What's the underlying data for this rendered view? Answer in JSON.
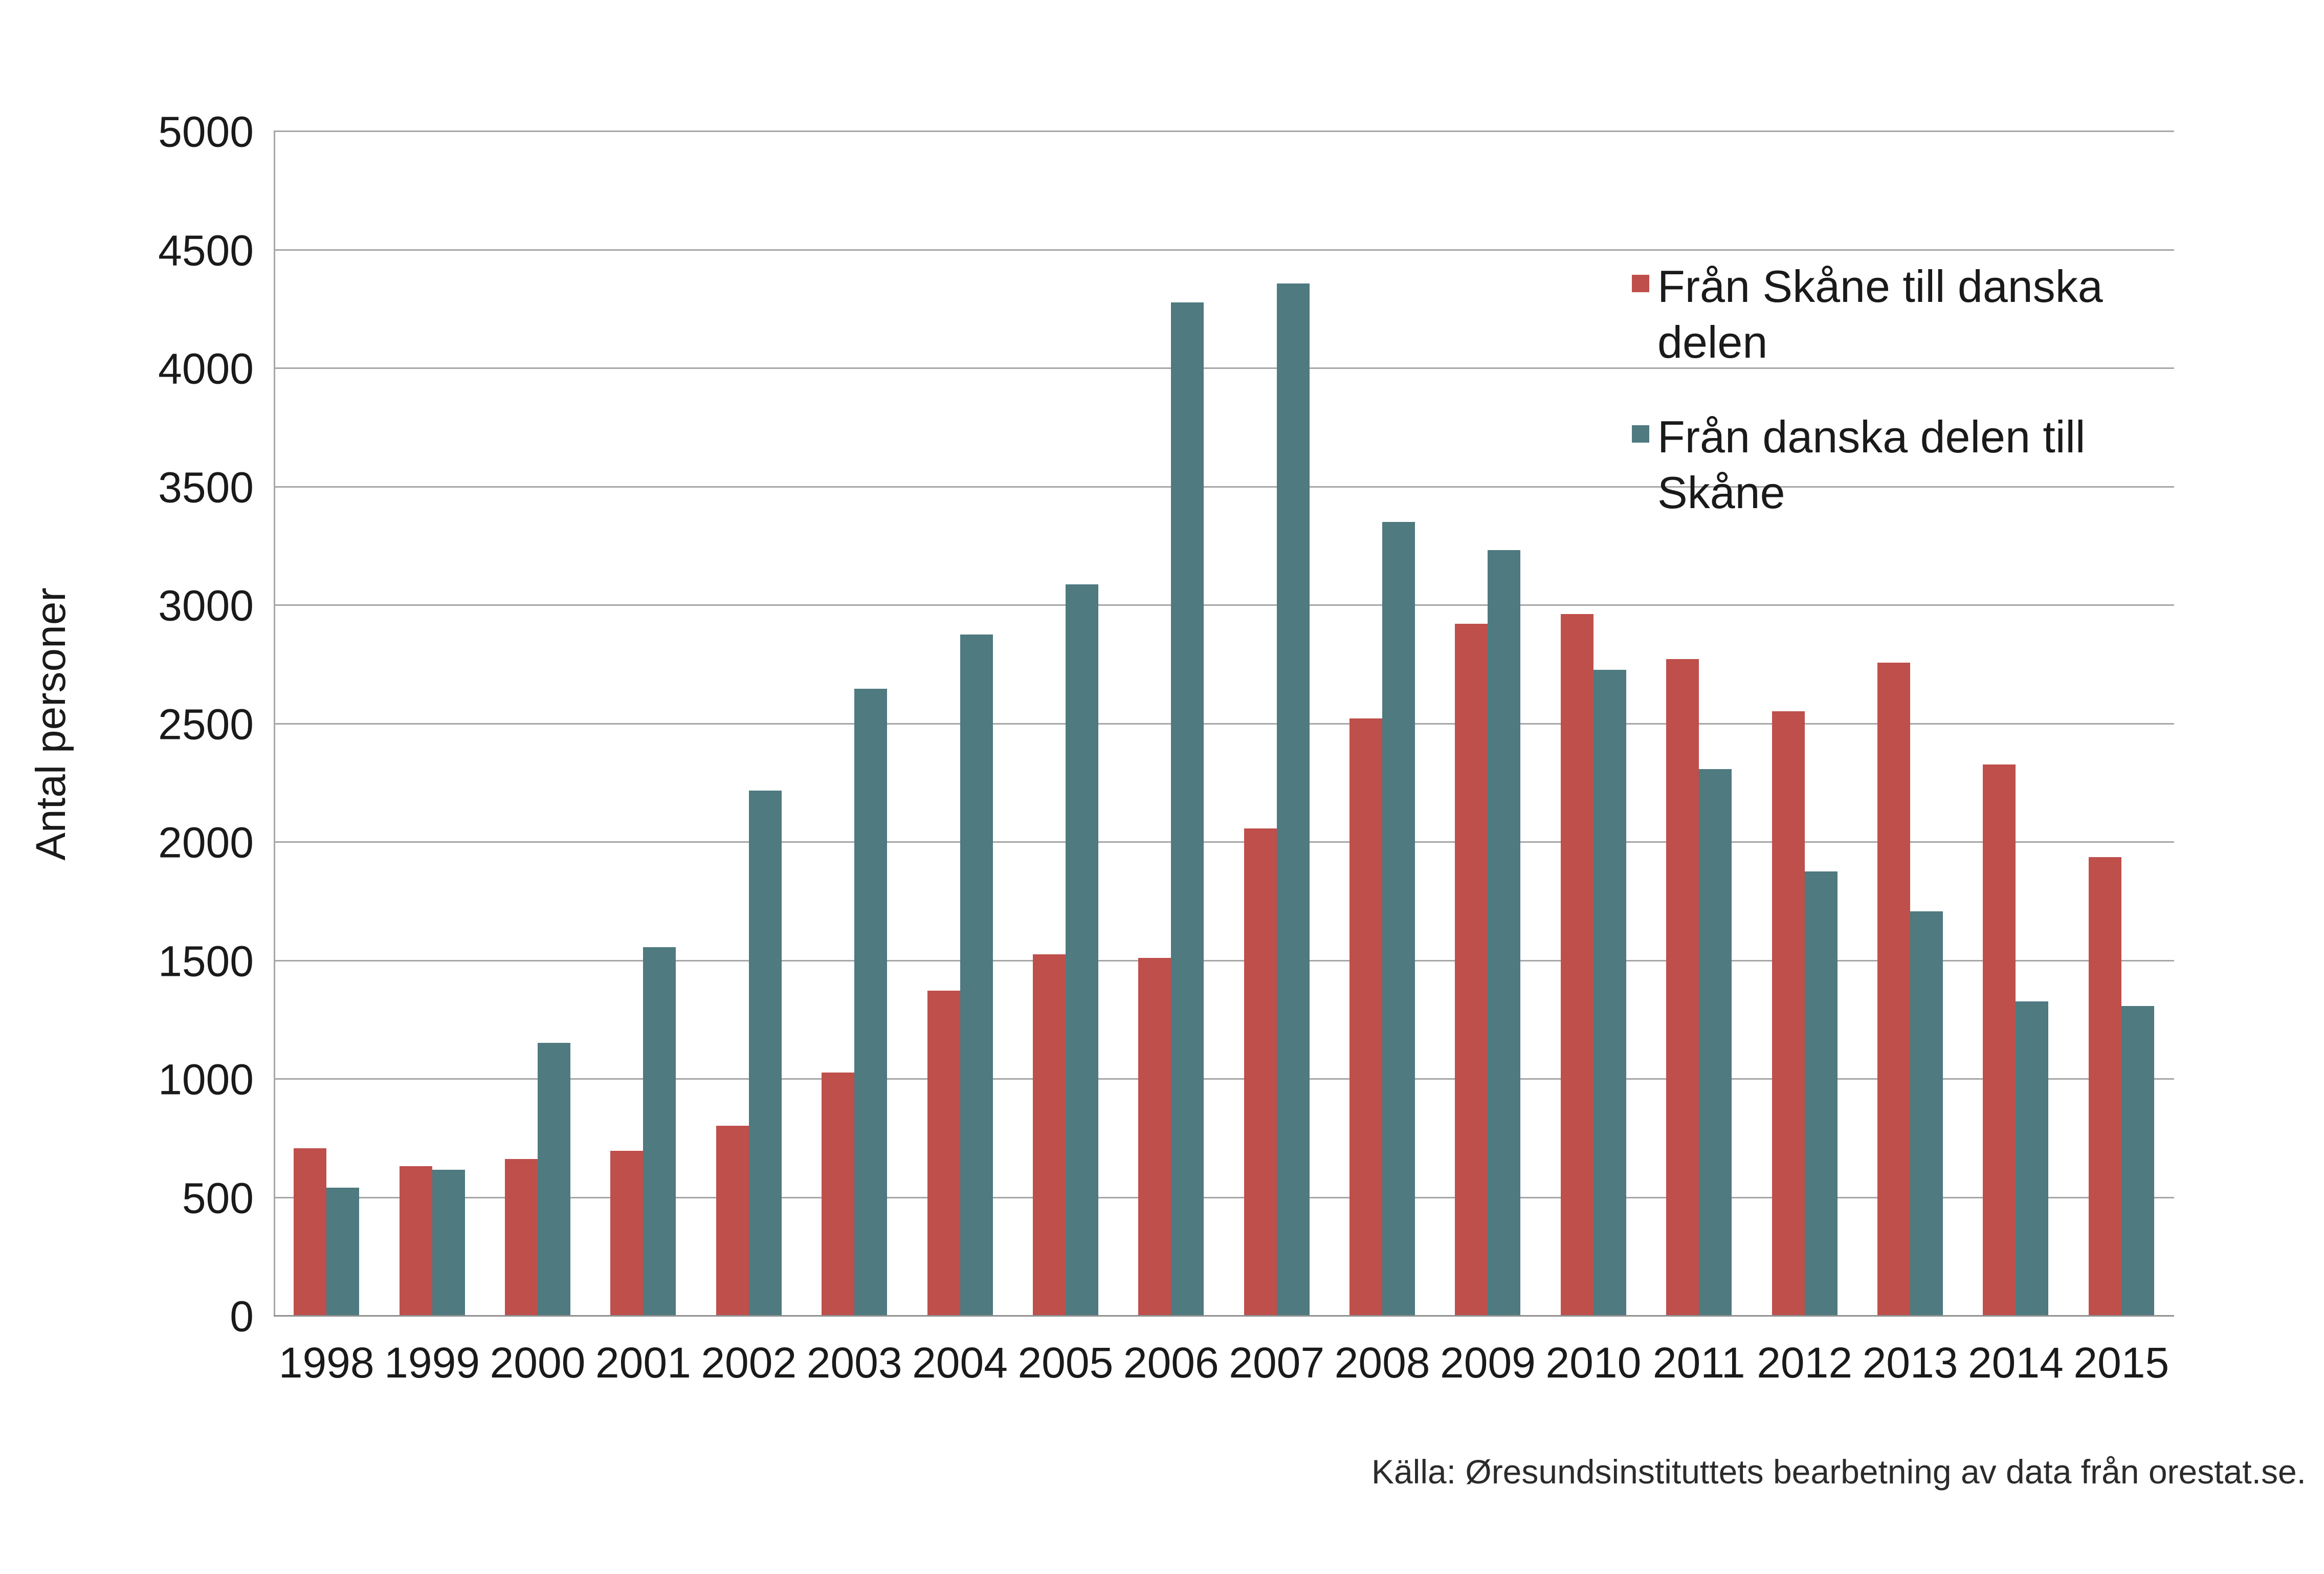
{
  "chart_data": {
    "type": "bar",
    "title": "",
    "ylabel": "Antal personer",
    "xlabel": "",
    "categories": [
      "1998",
      "1999",
      "2000",
      "2001",
      "2002",
      "2003",
      "2004",
      "2005",
      "2006",
      "2007",
      "2008",
      "2009",
      "2010",
      "2011",
      "2012",
      "2013",
      "2014",
      "2015"
    ],
    "series": [
      {
        "name": "Från Skåne till danska delen",
        "color": "#BE4F4B",
        "values": [
          710,
          635,
          665,
          700,
          805,
          1030,
          1375,
          1530,
          1515,
          2060,
          2525,
          2925,
          2965,
          2775,
          2555,
          2760,
          2330,
          1940
        ]
      },
      {
        "name": "Från danska delen till Skåne",
        "color": "#4E7A80",
        "values": [
          545,
          620,
          1155,
          1560,
          2220,
          2650,
          2880,
          3090,
          4280,
          4360,
          3355,
          3235,
          2730,
          2310,
          1880,
          1710,
          1330,
          1310
        ]
      }
    ],
    "ylim": [
      0,
      5000
    ],
    "ytick_step": 500,
    "grid": true,
    "legend_position": "top-right",
    "source": "Källa: Øresundsinstituttets bearbetning av data från orestat.se.",
    "colors": {
      "gridline": "#A6A6A6",
      "axis": "#8F8F8F",
      "text": "#1A1A1A",
      "background": "#FFFFFF"
    }
  }
}
